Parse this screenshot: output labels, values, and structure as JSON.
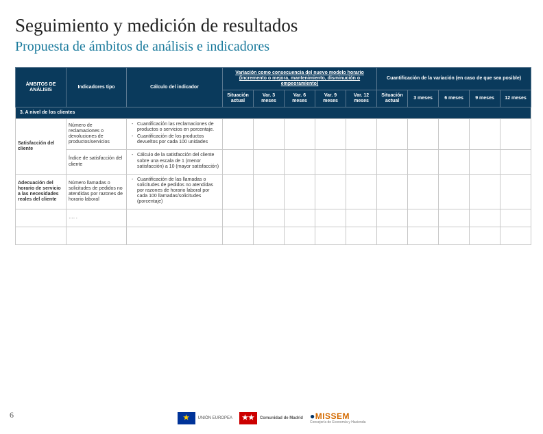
{
  "title": "Seguimiento y medición de resultados",
  "subtitle": "Propuesta de ámbitos de análisis e indicadores",
  "header": {
    "ambitos": "ÁMBITOS DE ANÁLISIS",
    "indicadores": "Indicadores tipo",
    "calculo": "Cálculo del indicador",
    "variacion_group": "Variación como consecuencia del nuevo modelo horario (incremento o mejora, mantenimiento, disminución o empeoramiento)",
    "cuant_group": "Cuantificación de la variación (en caso de que sea posible)",
    "var_cols": [
      "Situación actual",
      "Var. 3 meses",
      "Var. 6 meses",
      "Var. 9 meses",
      "Var. 12 meses"
    ],
    "cuant_cols": [
      "Situación actual",
      "3 meses",
      "6 meses",
      "9 meses",
      "12 meses"
    ]
  },
  "section_label": "3. A nivel de los clientes",
  "rows": {
    "r1_label": "Satisfacción del cliente",
    "r1_ind": "Número de reclamaciones o devoluciones de productos/servicios",
    "r1_calc_a": "Cuantificación las reclamaciones de productos o servicios en porcentaje.",
    "r1_calc_b": "Cuantificación de los productos devueltos por cada 100 unidades",
    "r2_ind": "Índice de satisfacción del cliente",
    "r2_calc_a": "Cálculo de la satisfacción del cliente sobre una escala de 1 (menor satisfacción) a 10 (mayor satisfacción)",
    "r3_label": "Adecuación del horario de servicio a las necesidades reales del cliente",
    "r3_ind": "Número llamadas o solicitudes de pedidos no atendidas por razones de horario laboral",
    "r3_calc_a": "Cuantificación de las llamadas o solicitudes de pedidos no atendidas por razones de horario laboral por cada 100 llamadas/solicitudes (porcentaje)",
    "dots": "…. ."
  },
  "page_number": "6",
  "logos": {
    "eu_sub": "UNIÓN EUROPEA",
    "cm": "Comunidad de Madrid",
    "missem_pre": "MISSEM",
    "missem_sub": "Consejería de Economía y Hacienda"
  },
  "colors": {
    "header_bg": "#0a3a5c",
    "accent": "#1a7a9c",
    "border": "#c8c8c8"
  }
}
